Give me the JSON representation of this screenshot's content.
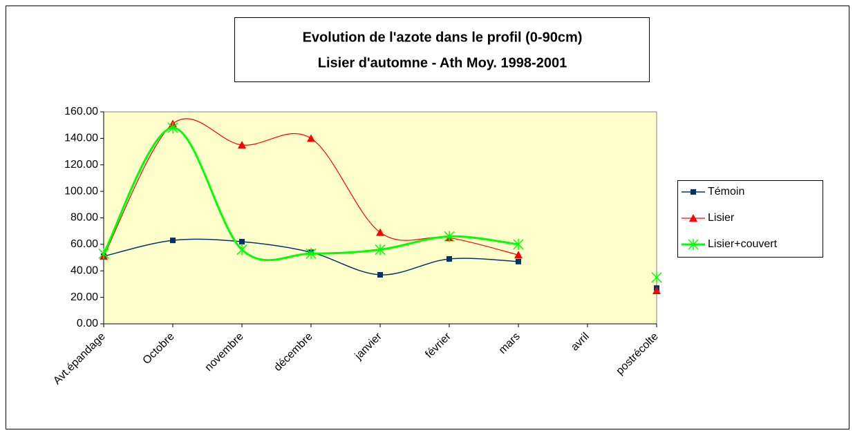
{
  "chart_data": {
    "type": "line",
    "title": [
      "Evolution de l'azote dans le profil (0-90cm)",
      "Lisier d'automne - Ath Moy. 1998-2001"
    ],
    "categories": [
      "Avt.épandage",
      "Octobre",
      "novembre",
      "décembre",
      "janvier",
      "février",
      "mars",
      "avril",
      "postrécolte"
    ],
    "series": [
      {
        "name": "Témoin",
        "color": "#003366",
        "marker": "square",
        "values": [
          51,
          63,
          62,
          54,
          37,
          49,
          47,
          null,
          27
        ]
      },
      {
        "name": "Lisier",
        "color": "#ff0000",
        "marker": "triangle",
        "values": [
          51,
          151,
          135,
          140,
          69,
          65,
          52,
          null,
          25
        ]
      },
      {
        "name": "Lisier+couvert",
        "color": "#00ff00",
        "marker": "star",
        "values": [
          53,
          148,
          56,
          53,
          56,
          66,
          60,
          null,
          35
        ]
      }
    ],
    "ylim": [
      0,
      160
    ],
    "yticks": [
      {
        "value": 0,
        "label": "0.00"
      },
      {
        "value": 20,
        "label": "20.00"
      },
      {
        "value": 40,
        "label": "40.00"
      },
      {
        "value": 60,
        "label": "60.00"
      },
      {
        "value": 80,
        "label": "80.00"
      },
      {
        "value": 100,
        "label": "100.00"
      },
      {
        "value": 120,
        "label": "120.00"
      },
      {
        "value": 140,
        "label": "140.00"
      },
      {
        "value": 160,
        "label": "160.00"
      }
    ],
    "smooth": true,
    "legend": "right"
  }
}
